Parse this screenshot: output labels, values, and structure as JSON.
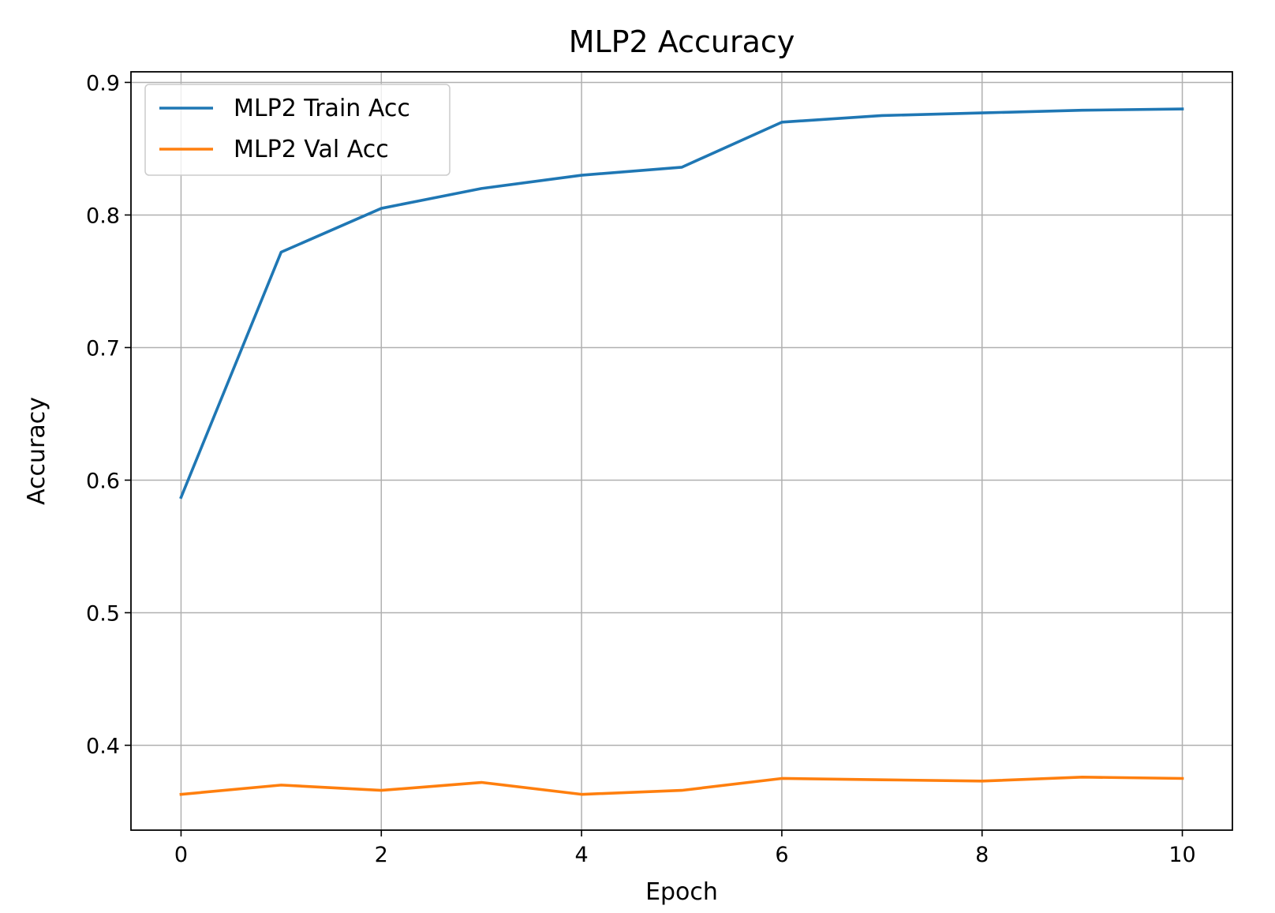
{
  "chart_data": {
    "type": "line",
    "title": "MLP2 Accuracy",
    "xlabel": "Epoch",
    "ylabel": "Accuracy",
    "xlim": [
      -0.5,
      10.5
    ],
    "ylim": [
      0.336,
      0.908
    ],
    "xticks": [
      0,
      2,
      4,
      6,
      8,
      10
    ],
    "xtick_labels": [
      "0",
      "2",
      "4",
      "6",
      "8",
      "10"
    ],
    "yticks": [
      0.4,
      0.5,
      0.6,
      0.7,
      0.8,
      0.9
    ],
    "ytick_labels": [
      "0.4",
      "0.5",
      "0.6",
      "0.7",
      "0.8",
      "0.9"
    ],
    "grid": true,
    "legend_position": "top-left",
    "x": [
      0,
      1,
      2,
      3,
      4,
      5,
      6,
      7,
      8,
      9,
      10
    ],
    "series": [
      {
        "name": "MLP2 Train Acc",
        "color": "#1f77b4",
        "values": [
          0.587,
          0.772,
          0.805,
          0.82,
          0.83,
          0.836,
          0.87,
          0.875,
          0.877,
          0.879,
          0.88
        ]
      },
      {
        "name": "MLP2 Val Acc",
        "color": "#ff7f0e",
        "values": [
          0.363,
          0.37,
          0.366,
          0.372,
          0.363,
          0.366,
          0.375,
          0.374,
          0.373,
          0.376,
          0.375
        ]
      }
    ]
  }
}
